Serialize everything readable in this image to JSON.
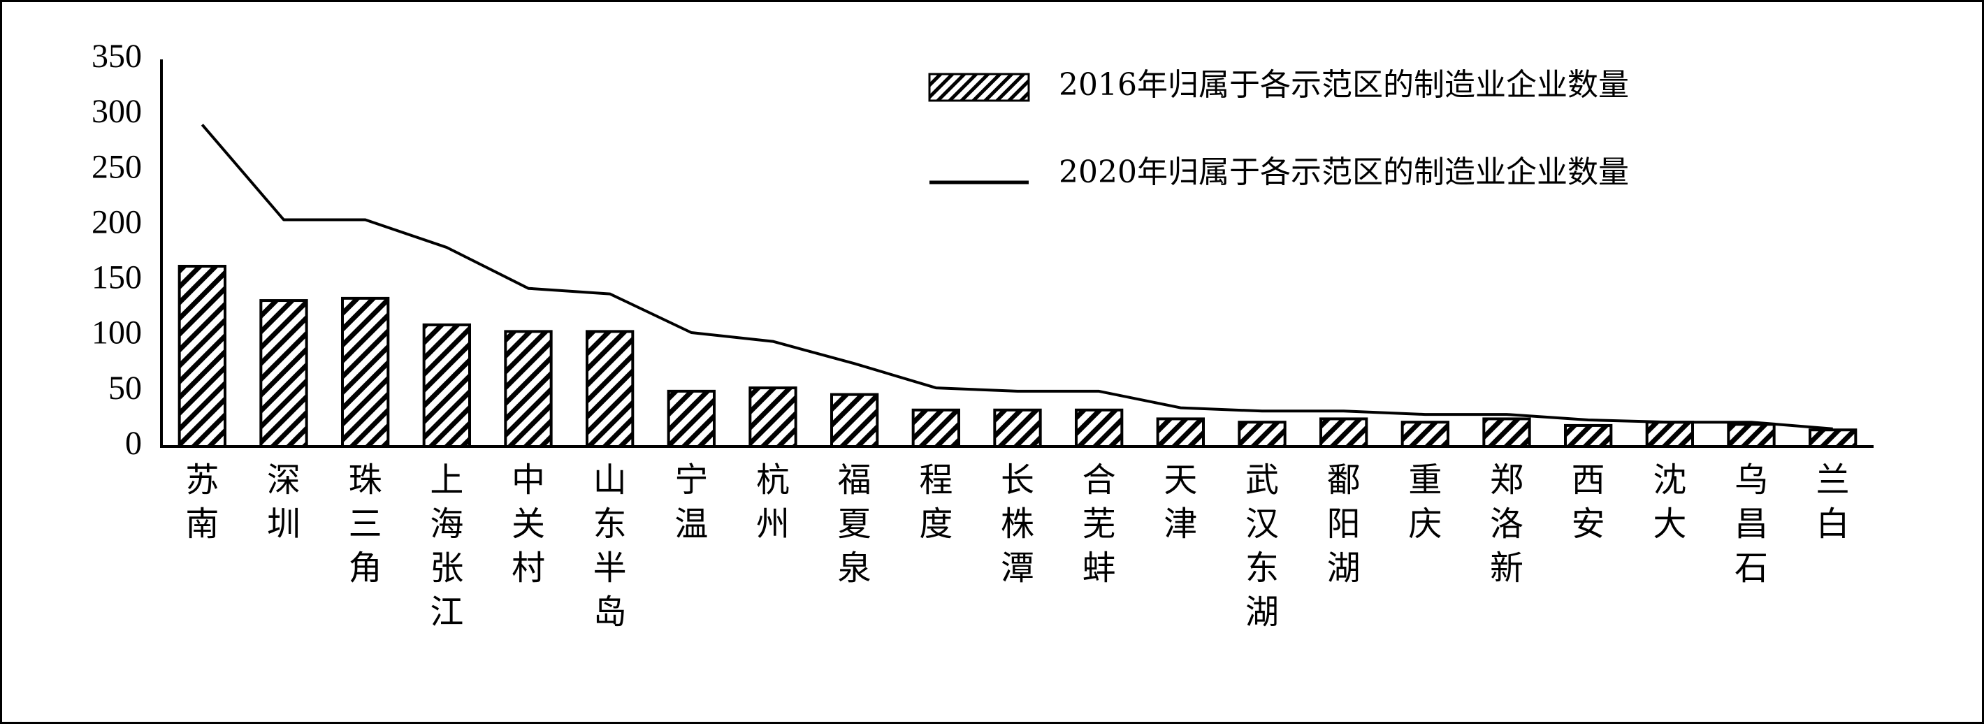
{
  "chart_data": {
    "type": "bar",
    "categories": [
      "苏南",
      "深圳",
      "珠三角",
      "上海张江",
      "中关村",
      "山东半岛",
      "宁温",
      "杭州",
      "福夏泉",
      "程度",
      "长株潭",
      "合芜蚌",
      "天津",
      "武汉东湖",
      "鄱阳湖",
      "重庆",
      "郑洛新",
      "西安",
      "沈大",
      "乌昌石",
      "兰白"
    ],
    "series": [
      {
        "name": "2016年归属于各示范区的制造业企业数量",
        "kind": "bar",
        "values": [
          163,
          132,
          134,
          110,
          104,
          104,
          50,
          53,
          47,
          33,
          33,
          33,
          25,
          22,
          25,
          22,
          25,
          19,
          22,
          20,
          15
        ]
      },
      {
        "name": "2020年归属于各示范区的制造业企业数量",
        "kind": "line",
        "values": [
          291,
          205,
          205,
          180,
          143,
          138,
          103,
          95,
          75,
          53,
          50,
          50,
          35,
          32,
          32,
          29,
          29,
          24,
          22,
          22,
          16
        ]
      }
    ],
    "yticks": [
      "350",
      "300",
      "250",
      "200",
      "150",
      "100",
      "50",
      "0"
    ],
    "ylim": [
      0,
      350
    ],
    "legend_position": "top-right",
    "colors": {
      "bar_stroke": "#000000",
      "bar_stripe": "#000000",
      "line": "#000000"
    }
  }
}
